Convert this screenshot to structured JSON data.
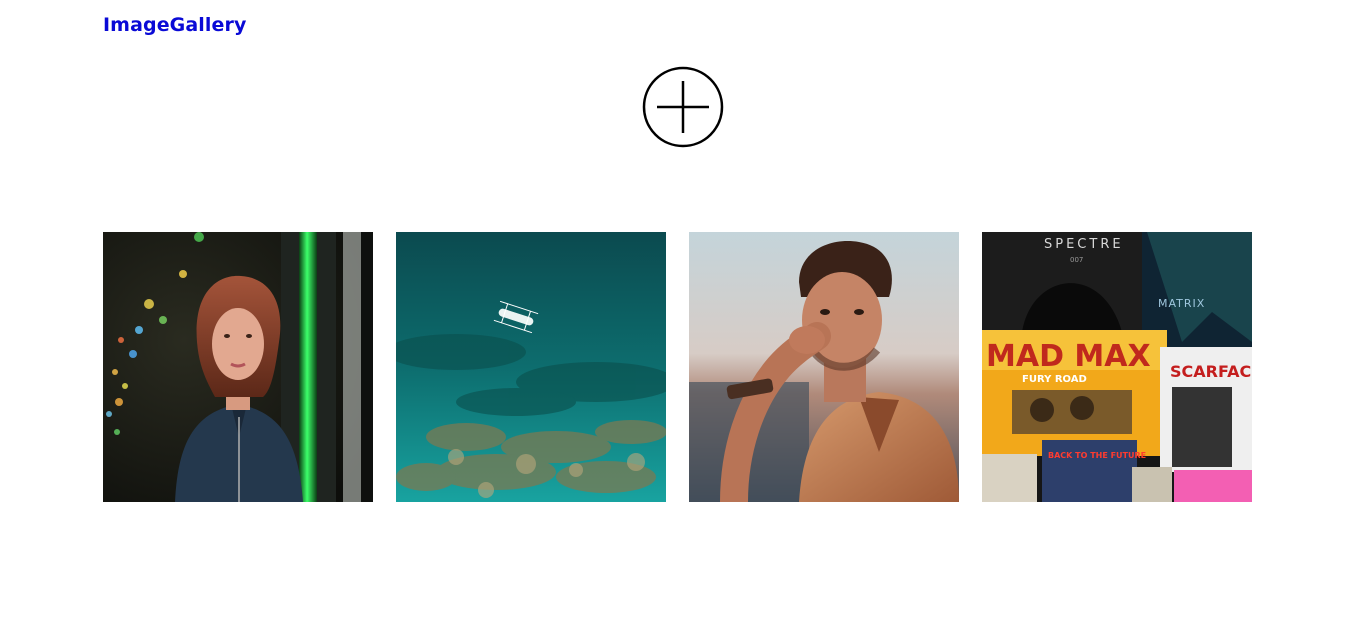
{
  "header": {
    "brand": "ImageGallery",
    "brand_color": "#0a0ad6"
  },
  "actions": {
    "add_icon": "circle-plus-icon"
  },
  "gallery": {
    "items": [
      {
        "name": "woman-portrait"
      },
      {
        "name": "aerial-sea-boat"
      },
      {
        "name": "man-portrait"
      },
      {
        "name": "movie-posters",
        "poster_texts": [
          "SPECTRE",
          "007",
          "MATRIX",
          "MAD MAX",
          "FURY ROAD",
          "SCARFACE",
          "BACK TO THE FUTURE"
        ]
      }
    ]
  }
}
